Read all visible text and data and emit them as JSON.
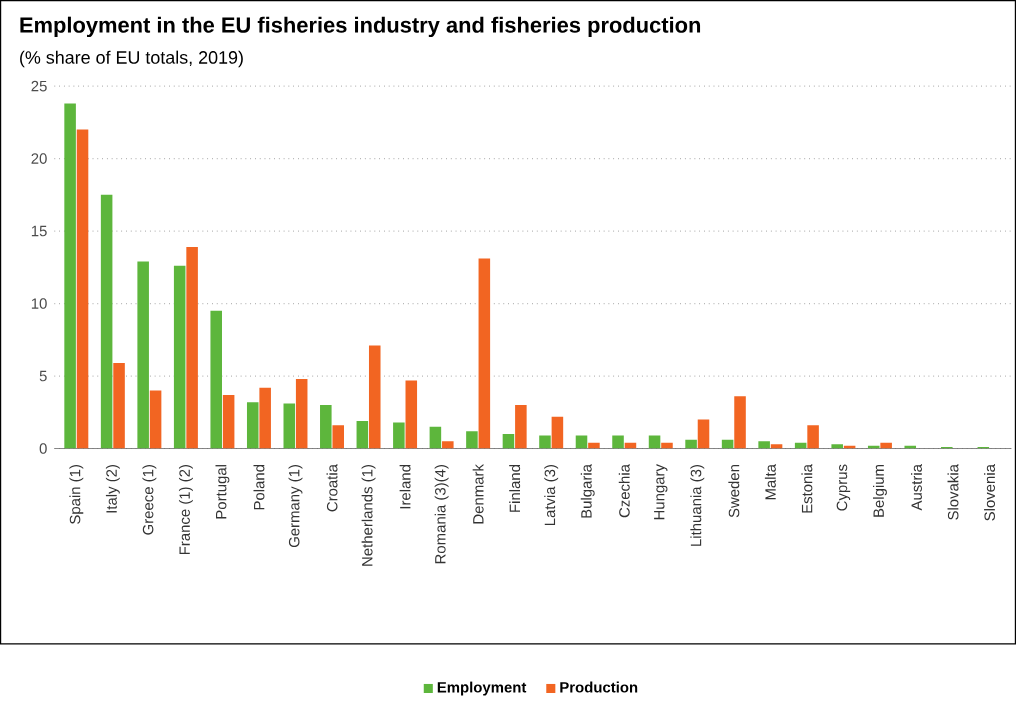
{
  "chart_data": {
    "type": "bar",
    "title": "Employment in the EU fisheries industry and fisheries production",
    "subtitle": "(% share of EU totals, 2019)",
    "categories": [
      "Spain (1)",
      "Italy (2)",
      "Greece (1)",
      "France (1) (2)",
      "Portugal",
      "Poland",
      "Germany (1)",
      "Croatia",
      "Netherlands (1)",
      "Ireland",
      "Romania (3)(4)",
      "Denmark",
      "Finland",
      "Latvia (3)",
      "Bulgaria",
      "Czechia",
      "Hungary",
      "Lithuania (3)",
      "Sweden",
      "Malta",
      "Estonia",
      "Cyprus",
      "Belgium",
      "Austria",
      "Slovakia",
      "Slovenia"
    ],
    "series": [
      {
        "name": "Employment",
        "color": "#5db63c",
        "values": [
          23.8,
          17.5,
          12.9,
          12.6,
          9.5,
          3.2,
          3.1,
          3.0,
          1.9,
          1.8,
          1.5,
          1.2,
          1.0,
          0.9,
          0.9,
          0.9,
          0.9,
          0.6,
          0.6,
          0.5,
          0.4,
          0.3,
          0.2,
          0.2,
          0.1,
          0.1
        ]
      },
      {
        "name": "Production",
        "color": "#f26522",
        "values": [
          22.0,
          5.9,
          4.0,
          13.9,
          3.7,
          4.2,
          4.8,
          1.6,
          7.1,
          4.7,
          0.5,
          13.1,
          3.0,
          2.2,
          0.4,
          0.4,
          0.4,
          2.0,
          3.6,
          0.3,
          1.6,
          0.2,
          0.4,
          0,
          0,
          0
        ]
      }
    ],
    "ylim": [
      0,
      25
    ],
    "yticks": [
      0,
      5,
      10,
      15,
      20,
      25
    ],
    "grid": "y",
    "legend": "bottom"
  }
}
